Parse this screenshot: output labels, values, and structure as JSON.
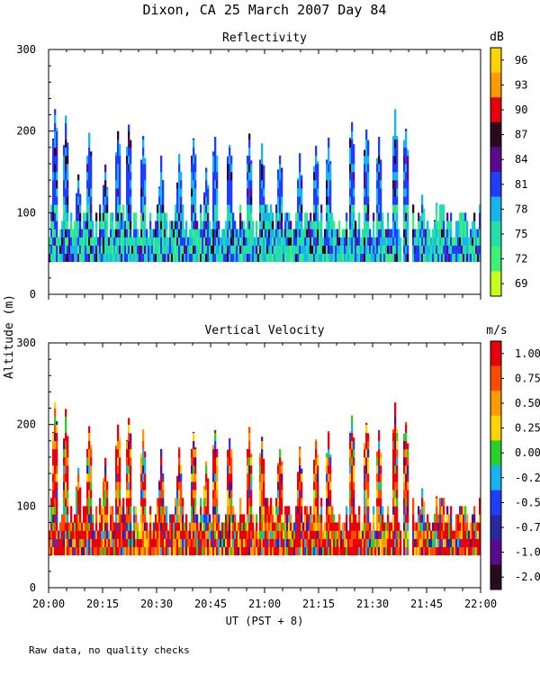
{
  "figure": {
    "title": "Dixon, CA 25 March 2007  Day  84",
    "ylabel": "Altitude (m)",
    "xlabel": "UT  (PST + 8)",
    "footnote": "Raw data, no quality checks"
  },
  "chart_data": [
    {
      "type": "heatmap",
      "title": "Reflectivity",
      "ylim": [
        0,
        300
      ],
      "yticks": [
        "0",
        "100",
        "200",
        "300"
      ],
      "xlim": [
        "20:00",
        "22:00"
      ],
      "xticks": [
        "20:00",
        "20:15",
        "20:30",
        "20:45",
        "21:00",
        "21:15",
        "21:30",
        "21:45",
        "22:00"
      ],
      "colorbar": {
        "unit": "dB",
        "labels": [
          "96",
          "93",
          "90",
          "87",
          "84",
          "81",
          "78",
          "75",
          "72",
          "69"
        ],
        "colors": [
          "#ffd400",
          "#ff9a00",
          "#e8000b",
          "#2a0a1f",
          "#5a0a8c",
          "#1f3cff",
          "#18b4f0",
          "#24e0a8",
          "#3cf07a",
          "#c8ff1e"
        ]
      },
      "range_gates": {
        "bottom_m": 40,
        "cells": "echo from 40 m up to a variable top, mostly 80-120 m, towers up to ~230 m"
      }
    },
    {
      "type": "heatmap",
      "title": "Vertical Velocity",
      "ylim": [
        0,
        300
      ],
      "yticks": [
        "0",
        "100",
        "200",
        "300"
      ],
      "xlim": [
        "20:00",
        "22:00"
      ],
      "xticks": [
        "20:00",
        "20:15",
        "20:30",
        "20:45",
        "21:00",
        "21:15",
        "21:30",
        "21:45",
        "22:00"
      ],
      "colorbar": {
        "unit": "m/s",
        "labels": [
          "1.00",
          "0.75",
          "0.50",
          "0.25",
          "0.00",
          "-0.25",
          "-0.50",
          "-0.75",
          "-1.00",
          "-2.00"
        ],
        "colors": [
          "#e8000b",
          "#ff4a00",
          "#ff9a00",
          "#ffd400",
          "#2ad02a",
          "#18b4f0",
          "#1f3cff",
          "#2a28a0",
          "#5a0a8c",
          "#2a0a1f"
        ]
      },
      "range_gates": {
        "bottom_m": 40,
        "cells": "echo from 40 m up to a variable top, mostly 80-120 m, towers up to ~230 m"
      }
    }
  ]
}
